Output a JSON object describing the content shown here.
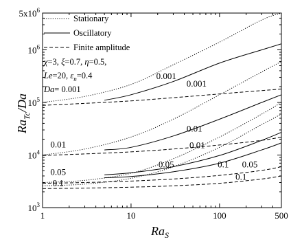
{
  "chart_data": {
    "type": "line",
    "xlabel": "Ra_S",
    "ylabel": "Ra_Tc/Da",
    "xscale": "log",
    "yscale": "log",
    "xlim": [
      1,
      500
    ],
    "ylim": [
      1000,
      5000000
    ],
    "x_ticks": [
      {
        "value": 1,
        "label": "1"
      },
      {
        "value": 10,
        "label": "10"
      },
      {
        "value": 100,
        "label": "100"
      },
      {
        "value": 500,
        "label": "500"
      }
    ],
    "y_ticks": [
      {
        "value": 1000,
        "label": "10",
        "exp": "3"
      },
      {
        "value": 10000,
        "label": "10",
        "exp": "4"
      },
      {
        "value": 100000,
        "label": "10",
        "exp": "5"
      },
      {
        "value": 1000000,
        "label": "10",
        "exp": "6"
      },
      {
        "value": 5000000,
        "label": "5x10",
        "exp": "6"
      }
    ],
    "legend": [
      {
        "name": "Stationary",
        "style": "dotted"
      },
      {
        "name": "Oscillatory",
        "style": "solid"
      },
      {
        "name": "Finite amplitude",
        "style": "dashed"
      }
    ],
    "parameters": {
      "line1": [
        "χ",
        "=3, ",
        "ξ",
        "=0.7, ",
        "η",
        "=0.5,"
      ],
      "line2": [
        "Le",
        "=20, ",
        "ε",
        "n",
        "=0.4"
      ],
      "line3": [
        "Da",
        "= 0.001"
      ]
    },
    "series": [
      {
        "group": "0.001",
        "style": "stationary",
        "x": [
          1,
          3,
          10,
          30,
          100,
          300,
          500
        ],
        "y": [
          100000,
          130000,
          220000,
          520000,
          1400000,
          3700000,
          5000000
        ]
      },
      {
        "group": "0.001",
        "style": "oscillatory",
        "x": [
          5,
          10,
          30,
          100,
          300,
          500
        ],
        "y": [
          110000,
          140000,
          250000,
          560000,
          1000000,
          1300000
        ]
      },
      {
        "group": "0.001",
        "style": "finite",
        "x": [
          1,
          3,
          10,
          30,
          100,
          300,
          500
        ],
        "y": [
          88000,
          96000,
          107000,
          123000,
          145000,
          168000,
          180000
        ]
      },
      {
        "group": "0.01",
        "style": "stationary",
        "x": [
          1,
          3,
          10,
          30,
          100,
          300,
          500
        ],
        "y": [
          10000,
          13000,
          22000,
          48000,
          140000,
          380000,
          600000
        ]
      },
      {
        "group": "0.01",
        "style": "oscillatory",
        "x": [
          5,
          10,
          30,
          100,
          300,
          500
        ],
        "y": [
          12500,
          14000,
          23000,
          48000,
          100000,
          140000
        ]
      },
      {
        "group": "0.01",
        "style": "finite",
        "x": [
          1,
          3,
          10,
          30,
          100,
          300,
          500
        ],
        "y": [
          9800,
          10500,
          11500,
          13000,
          15500,
          19000,
          22000
        ]
      },
      {
        "group": "0.05",
        "style": "stationary",
        "x": [
          1,
          3,
          10,
          30,
          100,
          300,
          500
        ],
        "y": [
          3000,
          3300,
          4500,
          8500,
          22000,
          60000,
          100000
        ]
      },
      {
        "group": "0.05",
        "style": "oscillatory",
        "x": [
          5,
          10,
          30,
          100,
          300,
          500
        ],
        "y": [
          4200,
          4600,
          6000,
          9800,
          19000,
          27000
        ]
      },
      {
        "group": "0.05",
        "style": "finite",
        "x": [
          1,
          3,
          10,
          30,
          100,
          300,
          500
        ],
        "y": [
          2900,
          3000,
          3200,
          3500,
          4100,
          5100,
          6000
        ]
      },
      {
        "group": "0.1",
        "style": "stationary",
        "x": [
          1,
          3,
          10,
          30,
          100,
          300,
          500
        ],
        "y": [
          2600,
          2800,
          3600,
          6000,
          14000,
          38000,
          60000
        ]
      },
      {
        "group": "0.1",
        "style": "oscillatory",
        "x": [
          5,
          10,
          30,
          100,
          300,
          500
        ],
        "y": [
          3700,
          3900,
          4800,
          7000,
          12500,
          17000
        ]
      },
      {
        "group": "0.1",
        "style": "finite",
        "x": [
          1,
          3,
          10,
          30,
          100,
          300,
          500
        ],
        "y": [
          2300,
          2350,
          2450,
          2600,
          2900,
          3500,
          4000
        ]
      }
    ],
    "annotations": [
      {
        "text": "0.001",
        "x": 25,
        "y": 280000
      },
      {
        "text": "0.001",
        "x": 55,
        "y": 200000
      },
      {
        "text": "0.01",
        "x": 1.5,
        "y": 14000
      },
      {
        "text": "0.01",
        "x": 52,
        "y": 28000
      },
      {
        "text": "0.01",
        "x": 56,
        "y": 13500
      },
      {
        "text": "0.05",
        "x": 1.5,
        "y": 4200
      },
      {
        "text": "0.05",
        "x": 25,
        "y": 5800
      },
      {
        "text": "0.05",
        "x": 220,
        "y": 5800
      },
      {
        "text": "0.1",
        "x": 1.5,
        "y": 2600
      },
      {
        "text": "0.1",
        "x": 110,
        "y": 5800
      },
      {
        "text": "0.1",
        "x": 175,
        "y": 3400
      }
    ]
  }
}
